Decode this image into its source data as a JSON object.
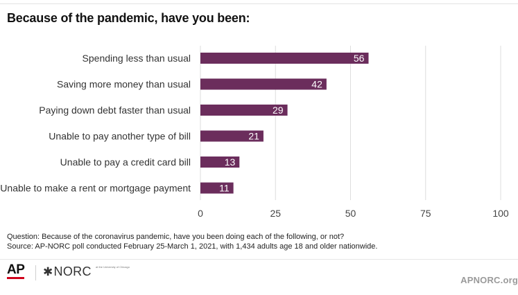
{
  "title": "Because of the pandemic, have you been:",
  "chart_data": {
    "type": "bar",
    "orientation": "horizontal",
    "title": "Because of the pandemic, have you been:",
    "categories": [
      "Spending less than usual",
      "Saving more money than usual",
      "Paying down debt faster than usual",
      "Unable to pay another type of bill",
      "Unable to pay a credit card bill",
      "Unable to make a rent or mortgage payment"
    ],
    "values": [
      56,
      42,
      29,
      21,
      13,
      11
    ],
    "xlim": [
      0,
      100
    ],
    "xticks": [
      0,
      25,
      50,
      75,
      100
    ],
    "grid": true,
    "bar_color": "#6b2d5c",
    "grid_color": "#dddddd"
  },
  "notes": {
    "question": "Question: Because of the coronavirus pandemic, have you been doing each of the following, or not?",
    "source": "Source: AP-NORC poll conducted February 25-March 1, 2021, with 1,434 adults age 18 and older nationwide."
  },
  "footer": {
    "ap_logo": "AP",
    "norc_logo": "NORC",
    "norc_subtitle": "at the University of Chicago",
    "site": "APNORC.org"
  }
}
